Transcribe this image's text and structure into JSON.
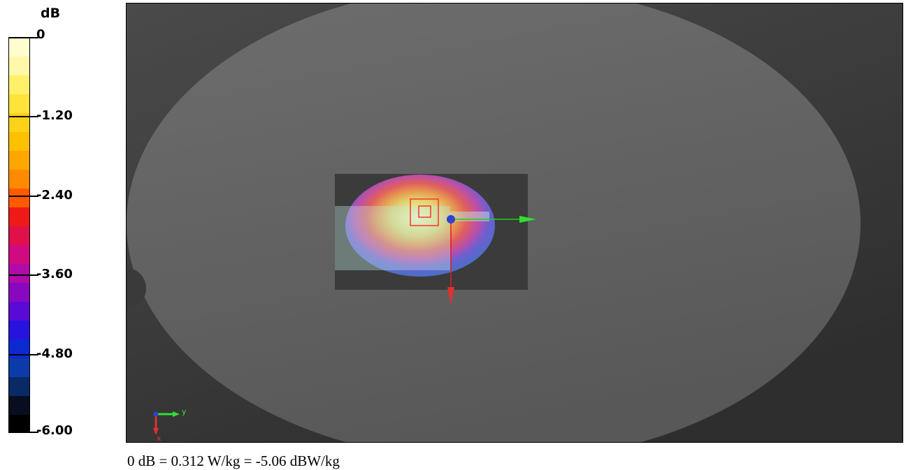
{
  "colorbar": {
    "unit": "dB",
    "ticks": [
      "0",
      "-1.20",
      "-2.40",
      "-3.60",
      "-4.80",
      "-6.00"
    ],
    "range": [
      -6.0,
      0.0
    ],
    "colors": [
      "#fffcd0",
      "#fff8a8",
      "#fff06a",
      "#ffe23a",
      "#ffd21a",
      "#ffc000",
      "#ffa600",
      "#ff8a00",
      "#ff5a00",
      "#ee1a18",
      "#e0104a",
      "#d00a80",
      "#b00aa8",
      "#8808c0",
      "#5a0ad6",
      "#2812de",
      "#0a2ad0",
      "#0c3aa8",
      "#0a2a66",
      "#080e20",
      "#000000"
    ]
  },
  "viewport": {
    "background": "#3c3c3c",
    "phantom_color": "#6a6a6a",
    "axis_triad": {
      "y_label": "y",
      "x_label": "x"
    }
  },
  "caption": "0 dB = 0.312 W/kg = -5.06 dBW/kg"
}
